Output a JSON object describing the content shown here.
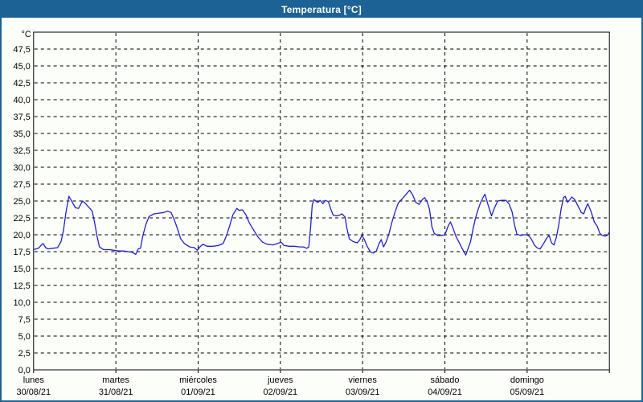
{
  "window": {
    "title": "Temperatura [°C]",
    "colors": {
      "titlebar_bg": "#1d6294",
      "titlebar_text": "#ffffff",
      "window_border": "#1d6294",
      "background": "#fcfefa",
      "grid": "#000000",
      "axis": "#000000",
      "label_text": "#000000",
      "series_line": "#2121c8"
    }
  },
  "chart_data": {
    "type": "line",
    "title": "Temperatura [°C]",
    "legend": "none",
    "grid": {
      "horizontal_dashed": true,
      "vertical_dashed_at_day_boundaries": true
    },
    "y_axis": {
      "unit": "°C",
      "min": 0,
      "max_labeled": 47.5,
      "max_visible": 50,
      "step": 2.5,
      "tick_labels": [
        "0,0",
        "2,5",
        "5,0",
        "7,5",
        "10,0",
        "12,5",
        "15,0",
        "17,5",
        "20,0",
        "22,5",
        "25,0",
        "27,5",
        "30,0",
        "32,5",
        "35,0",
        "37,5",
        "40,0",
        "42,5",
        "45,0",
        "47,5"
      ]
    },
    "x_axis": {
      "hours_total": 168,
      "days": [
        {
          "name": "lunes",
          "date": "30/08/21"
        },
        {
          "name": "martes",
          "date": "31/08/21"
        },
        {
          "name": "miércoles",
          "date": "01/09/21"
        },
        {
          "name": "jueves",
          "date": "02/09/21"
        },
        {
          "name": "viernes",
          "date": "03/09/21"
        },
        {
          "name": "sábado",
          "date": "04/09/21"
        },
        {
          "name": "domingo",
          "date": "05/09/21"
        }
      ]
    },
    "series": [
      {
        "name": "Temperatura",
        "color": "#2121c8",
        "points_hour_degC": [
          [
            0,
            17.8
          ],
          [
            1.4,
            18.0
          ],
          [
            2.3,
            18.5
          ],
          [
            2.8,
            18.7
          ],
          [
            3.5,
            18.1
          ],
          [
            4.2,
            17.9
          ],
          [
            5.6,
            18.0
          ],
          [
            7.0,
            18.1
          ],
          [
            8.0,
            19.0
          ],
          [
            8.7,
            20.6
          ],
          [
            9.4,
            23.2
          ],
          [
            10.3,
            25.7
          ],
          [
            11.2,
            24.9
          ],
          [
            12.2,
            24.0
          ],
          [
            13.1,
            23.9
          ],
          [
            14.3,
            25.0
          ],
          [
            15.2,
            24.6
          ],
          [
            16.4,
            23.9
          ],
          [
            17.1,
            23.5
          ],
          [
            17.8,
            21.8
          ],
          [
            18.5,
            19.8
          ],
          [
            19.2,
            18.2
          ],
          [
            20.4,
            17.8
          ],
          [
            22.0,
            17.8
          ],
          [
            23.4,
            17.7
          ],
          [
            24.8,
            17.6
          ],
          [
            26.2,
            17.6
          ],
          [
            27.7,
            17.5
          ],
          [
            28.8,
            17.4
          ],
          [
            29.8,
            17.1
          ],
          [
            30.5,
            17.9
          ],
          [
            31.2,
            18.0
          ],
          [
            31.9,
            19.9
          ],
          [
            32.8,
            21.6
          ],
          [
            33.7,
            22.7
          ],
          [
            35.1,
            23.1
          ],
          [
            36.6,
            23.2
          ],
          [
            38.0,
            23.3
          ],
          [
            39.1,
            23.5
          ],
          [
            40.1,
            23.3
          ],
          [
            41.0,
            22.3
          ],
          [
            41.9,
            21.0
          ],
          [
            42.9,
            19.4
          ],
          [
            44.0,
            18.7
          ],
          [
            45.5,
            18.2
          ],
          [
            46.9,
            18.1
          ],
          [
            47.8,
            17.7
          ],
          [
            48.5,
            18.2
          ],
          [
            49.4,
            18.6
          ],
          [
            50.6,
            18.3
          ],
          [
            52.3,
            18.3
          ],
          [
            53.9,
            18.4
          ],
          [
            55.3,
            18.7
          ],
          [
            56.2,
            19.8
          ],
          [
            57.2,
            21.3
          ],
          [
            58.1,
            22.9
          ],
          [
            59.3,
            23.9
          ],
          [
            60.0,
            23.6
          ],
          [
            60.9,
            23.7
          ],
          [
            61.9,
            23.0
          ],
          [
            63.0,
            21.7
          ],
          [
            64.2,
            20.7
          ],
          [
            65.4,
            19.7
          ],
          [
            66.8,
            18.9
          ],
          [
            68.2,
            18.6
          ],
          [
            69.8,
            18.5
          ],
          [
            71.2,
            18.7
          ],
          [
            72.2,
            18.9
          ],
          [
            73.1,
            18.4
          ],
          [
            74.5,
            18.3
          ],
          [
            76.1,
            18.3
          ],
          [
            77.6,
            18.2
          ],
          [
            78.7,
            18.2
          ],
          [
            79.7,
            18.0
          ],
          [
            80.3,
            18.2
          ],
          [
            80.8,
            21.0
          ],
          [
            81.3,
            24.4
          ],
          [
            81.8,
            25.2
          ],
          [
            82.9,
            24.8
          ],
          [
            83.6,
            25.1
          ],
          [
            84.4,
            24.6
          ],
          [
            85.1,
            25.1
          ],
          [
            86.0,
            24.9
          ],
          [
            86.7,
            23.8
          ],
          [
            87.4,
            22.9
          ],
          [
            88.3,
            22.8
          ],
          [
            89.3,
            22.9
          ],
          [
            90.0,
            23.1
          ],
          [
            90.9,
            22.6
          ],
          [
            91.4,
            21.0
          ],
          [
            92.1,
            19.4
          ],
          [
            93.2,
            19.0
          ],
          [
            94.4,
            18.8
          ],
          [
            95.1,
            19.2
          ],
          [
            95.8,
            19.9
          ],
          [
            96.5,
            19.3
          ],
          [
            97.2,
            18.4
          ],
          [
            98.2,
            17.5
          ],
          [
            99.1,
            17.3
          ],
          [
            100.0,
            17.6
          ],
          [
            100.7,
            18.6
          ],
          [
            101.4,
            19.3
          ],
          [
            102.1,
            18.2
          ],
          [
            102.9,
            19.0
          ],
          [
            103.6,
            20.0
          ],
          [
            104.5,
            21.8
          ],
          [
            105.4,
            23.3
          ],
          [
            106.4,
            24.7
          ],
          [
            107.5,
            25.3
          ],
          [
            108.7,
            26.0
          ],
          [
            109.7,
            26.6
          ],
          [
            110.6,
            25.9
          ],
          [
            111.5,
            24.8
          ],
          [
            112.5,
            24.5
          ],
          [
            113.4,
            25.2
          ],
          [
            114.1,
            25.5
          ],
          [
            114.8,
            24.9
          ],
          [
            115.5,
            23.8
          ],
          [
            116.2,
            21.2
          ],
          [
            116.9,
            20.2
          ],
          [
            117.9,
            19.9
          ],
          [
            119.0,
            19.9
          ],
          [
            120.0,
            20.0
          ],
          [
            120.9,
            21.2
          ],
          [
            121.6,
            21.9
          ],
          [
            122.3,
            21.1
          ],
          [
            123.2,
            19.8
          ],
          [
            124.2,
            18.8
          ],
          [
            125.1,
            17.9
          ],
          [
            126.1,
            17.0
          ],
          [
            126.8,
            18.0
          ],
          [
            127.5,
            19.0
          ],
          [
            128.2,
            20.8
          ],
          [
            128.9,
            22.4
          ],
          [
            129.6,
            23.6
          ],
          [
            130.3,
            24.6
          ],
          [
            131.0,
            25.4
          ],
          [
            131.7,
            26.0
          ],
          [
            132.6,
            24.4
          ],
          [
            133.6,
            22.8
          ],
          [
            134.5,
            24.0
          ],
          [
            135.4,
            25.0
          ],
          [
            136.6,
            25.1
          ],
          [
            137.8,
            25.1
          ],
          [
            138.7,
            24.6
          ],
          [
            139.6,
            23.4
          ],
          [
            140.3,
            21.5
          ],
          [
            141.0,
            20.1
          ],
          [
            142.0,
            19.9
          ],
          [
            143.2,
            20.0
          ],
          [
            143.9,
            20.0
          ],
          [
            144.6,
            19.8
          ],
          [
            145.3,
            19.3
          ],
          [
            146.2,
            18.4
          ],
          [
            147.1,
            18.0
          ],
          [
            147.8,
            17.9
          ],
          [
            148.8,
            18.7
          ],
          [
            149.7,
            19.5
          ],
          [
            150.4,
            19.9
          ],
          [
            151.1,
            18.8
          ],
          [
            151.8,
            18.5
          ],
          [
            152.5,
            19.6
          ],
          [
            153.2,
            21.4
          ],
          [
            153.9,
            23.8
          ],
          [
            154.6,
            25.5
          ],
          [
            155.1,
            25.7
          ],
          [
            155.8,
            24.8
          ],
          [
            156.5,
            25.2
          ],
          [
            157.0,
            25.6
          ],
          [
            157.9,
            25.2
          ],
          [
            158.9,
            24.2
          ],
          [
            159.8,
            23.3
          ],
          [
            160.5,
            23.1
          ],
          [
            161.2,
            24.1
          ],
          [
            161.7,
            24.6
          ],
          [
            162.6,
            23.5
          ],
          [
            163.6,
            21.9
          ],
          [
            164.5,
            21.2
          ],
          [
            165.2,
            20.2
          ],
          [
            165.9,
            19.9
          ],
          [
            166.8,
            19.8
          ],
          [
            167.4,
            19.9
          ],
          [
            168.0,
            20.4
          ]
        ]
      }
    ]
  }
}
